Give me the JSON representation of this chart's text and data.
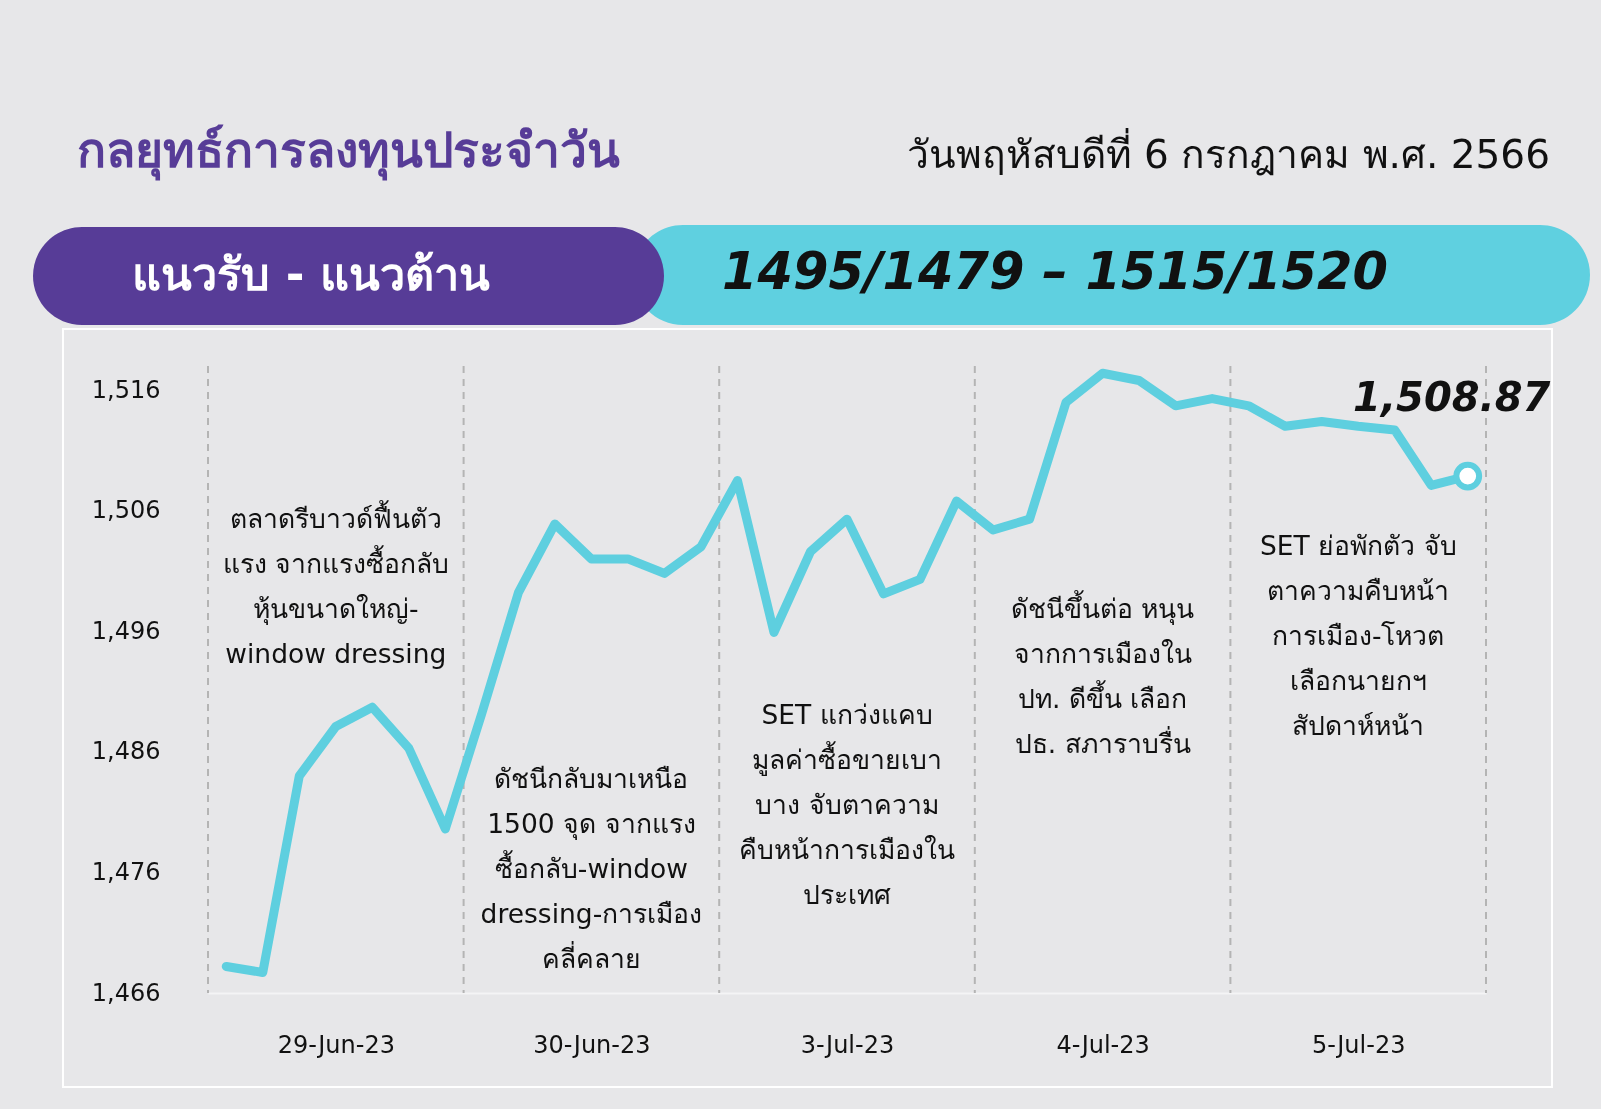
{
  "chart_data": {
    "type": "line",
    "title": "กลยุทธ์การลงทุนประจำวัน",
    "subtitle": "วันพฤหัสบดีที่ 6 กรกฎาคม พ.ศ. 2566",
    "annotations": [
      "แนวรับ - แนวต้าน",
      "1495/1479 – 1515/1520",
      "ตลาดรีบาวด์ฟื้นตัว\nแรง จากแรงซื้อกลับ\nหุ้นขนาดใหญ่-\nwindow dressing",
      "ดัชนีกลับมาเหนือ\n1500 จุด จากแรง\nซื้อกลับ-window\ndressing-การเมือง\nคลี่คลาย",
      "SET แกว่งแคบ\nมูลค่าซื้อขายเบา\nบาง จับตาความ\nคืบหน้าการเมืองใน\nประเทศ",
      "ดัชนีขึ้นต่อ หนุน\nจากการเมืองใน\nปท. ดีขึ้น เลือก\nปธ. สภาราบรื่น",
      "SET  ย่อพักตัว จับ\nตาความคืบหน้า\nการเมือง-โหวต\nเลือกนายกฯ\nสัปดาห์หน้า"
    ],
    "categories": [
      null,
      null,
      null,
      "29-Jun-23",
      null,
      null,
      null,
      null,
      null,
      null,
      "30-Jun-23",
      null,
      null,
      null,
      null,
      null,
      null,
      "3-Jul-23",
      null,
      null,
      null,
      null,
      null,
      null,
      "4-Jul-23",
      null,
      null,
      null,
      null,
      null,
      null,
      "5-Jul-23",
      null,
      null,
      null
    ],
    "series": [
      {
        "color": "#5ecfdf",
        "values": [
          1468.2,
          1467.7,
          1484.0,
          1488.1,
          1489.7,
          1486.3,
          1479.6,
          1489.2,
          1499.2,
          1504.9,
          1502.0,
          1502.0,
          1500.8,
          1503.0,
          1508.5,
          1495.9,
          1502.6,
          1505.3,
          1499.1,
          1500.3,
          1506.8,
          1504.4,
          1505.3,
          1515.0,
          1517.4,
          1516.8,
          1514.7,
          1515.3,
          1514.7,
          1513.0,
          1513.4,
          1513.0,
          1512.7,
          1508.1,
          1508.87
        ]
      },
      {
        "type": "scatter",
        "color": "#ffffff",
        "values": [
          null,
          null,
          null,
          null,
          null,
          null,
          null,
          null,
          null,
          null,
          null,
          null,
          null,
          null,
          null,
          null,
          null,
          null,
          null,
          null,
          null,
          null,
          null,
          null,
          null,
          null,
          null,
          null,
          null,
          null,
          null,
          null,
          null,
          null,
          1508.87
        ],
        "value_labels": [
          null,
          null,
          null,
          null,
          null,
          null,
          null,
          null,
          null,
          null,
          null,
          null,
          null,
          null,
          null,
          null,
          null,
          null,
          null,
          null,
          null,
          null,
          null,
          null,
          null,
          null,
          null,
          null,
          null,
          null,
          null,
          null,
          null,
          null,
          "1,508.87"
        ]
      }
    ],
    "ylim": [
      1466,
      1518
    ],
    "yticks": [
      {
        "value": 1466,
        "label": "1,466"
      },
      {
        "value": 1476,
        "label": "1,476"
      },
      {
        "value": 1486,
        "label": "1,486"
      },
      {
        "value": 1496,
        "label": "1,496"
      },
      {
        "value": 1506,
        "label": "1,506"
      },
      {
        "value": 1516,
        "label": "1,516"
      }
    ],
    "grid": "x"
  }
}
